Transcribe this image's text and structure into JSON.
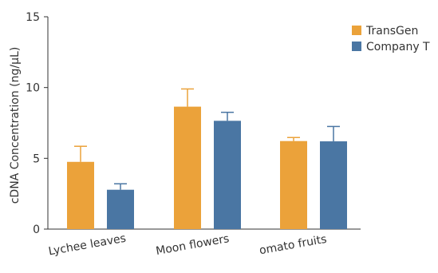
{
  "chart_data": {
    "type": "bar",
    "ylabel": "cDNA Concentration (ng/µL)",
    "ylim": [
      0,
      15
    ],
    "yticks": [
      0,
      5,
      10,
      15
    ],
    "categories": [
      "Lychee leaves",
      "Moon flowers",
      "omato fruits"
    ],
    "series": [
      {
        "name": "TransGen",
        "color": "#EBA23A",
        "values": [
          4.75,
          8.65,
          6.22
        ],
        "errors": [
          1.1,
          1.25,
          0.25
        ]
      },
      {
        "name": "Company T",
        "color": "#4A76A3",
        "values": [
          2.78,
          7.65,
          6.2
        ],
        "errors": [
          0.42,
          0.6,
          1.05
        ]
      }
    ],
    "legend_position": "top-right",
    "grid": false
  }
}
